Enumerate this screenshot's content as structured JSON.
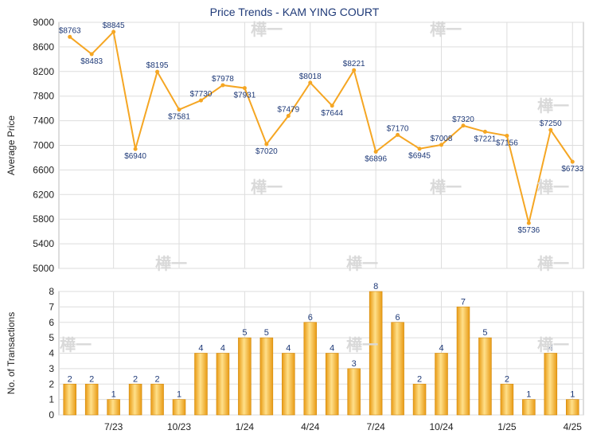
{
  "chart_data": [
    {
      "type": "line",
      "title": "Price Trends - KAM YING COURT",
      "ylabel": "Average Price",
      "ylim": [
        5000,
        9000
      ],
      "yticks": [
        5000,
        5400,
        5800,
        6200,
        6600,
        7000,
        7400,
        7800,
        8200,
        8600,
        9000
      ],
      "grid": true,
      "color": "#f5a623",
      "series": [
        {
          "values": [
            8763,
            8483,
            8845,
            6940,
            8195,
            7581,
            7730,
            7978,
            7931,
            7020,
            7479,
            8018,
            7644,
            8221,
            6896,
            7170,
            6945,
            7008,
            7320,
            7221,
            7156,
            5736,
            7250,
            6733
          ],
          "labels": [
            "$8763",
            "$8483",
            "$8845",
            "$6940",
            "$8195",
            "$7581",
            "$7730",
            "$7978",
            "$7931",
            "$7020",
            "$7479",
            "$8018",
            "$7644",
            "$8221",
            "$6896",
            "$7170",
            "$6945",
            "$7008",
            "$7320",
            "$7221",
            "$7156",
            "$5736",
            "$7250",
            "$6733"
          ]
        }
      ]
    },
    {
      "type": "bar",
      "ylabel": "No. of Transactions",
      "ylim": [
        0,
        8
      ],
      "yticks": [
        0,
        1,
        2,
        3,
        4,
        5,
        6,
        7,
        8
      ],
      "grid": true,
      "color": "#f5a623",
      "values": [
        2,
        2,
        1,
        2,
        2,
        1,
        4,
        4,
        5,
        5,
        4,
        6,
        4,
        3,
        8,
        6,
        2,
        4,
        7,
        5,
        2,
        1,
        4,
        1
      ],
      "xticks": [
        {
          "index": 2,
          "label": "7/23"
        },
        {
          "index": 5,
          "label": "10/23"
        },
        {
          "index": 8,
          "label": "1/24"
        },
        {
          "index": 11,
          "label": "4/24"
        },
        {
          "index": 14,
          "label": "7/24"
        },
        {
          "index": 17,
          "label": "10/24"
        },
        {
          "index": 20,
          "label": "1/25"
        },
        {
          "index": 23,
          "label": "4/25"
        }
      ]
    }
  ],
  "watermark": "樺一"
}
